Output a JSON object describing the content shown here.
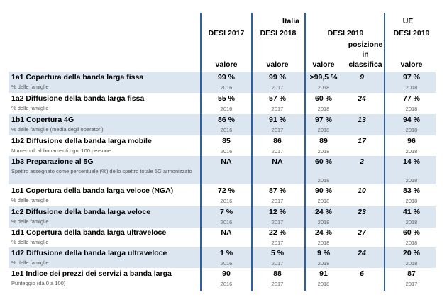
{
  "header": {
    "italia": "Italia",
    "ue": "UE",
    "desi2017": "DESI 2017",
    "desi2018": "DESI 2018",
    "desi2019": "DESI 2019",
    "desi2019_ue": "DESI 2019",
    "posizione": "posizione",
    "in": "in",
    "classifica": "classifica",
    "valore": "valore"
  },
  "rows": [
    {
      "label": "1a1 Copertura della banda larga fissa",
      "sub": "% delle famiglie",
      "v17": "99 %",
      "y17": "2016",
      "v18": "99 %",
      "y18": "2017",
      "v19": ">99,5 %",
      "y19": "2018",
      "rank": "9",
      "ue": "97 %",
      "yue": "2018"
    },
    {
      "label": "1a2 Diffusione della banda larga fissa",
      "sub": "% delle famiglie",
      "v17": "55 %",
      "y17": "2016",
      "v18": "57 %",
      "y18": "2017",
      "v19": "60 %",
      "y19": "2018",
      "rank": "24",
      "ue": "77 %",
      "yue": "2018"
    },
    {
      "label": "1b1 Copertura 4G",
      "sub": "% delle famiglie (media degli operatori)",
      "v17": "86 %",
      "y17": "2016",
      "v18": "91 %",
      "y18": "2017",
      "v19": "97 %",
      "y19": "2018",
      "rank": "13",
      "ue": "94 %",
      "yue": "2018"
    },
    {
      "label": "1b2 Diffusione della banda larga mobile",
      "sub": "Numero di abbonamenti ogni 100 persone",
      "v17": "85",
      "y17": "2016",
      "v18": "86",
      "y18": "2017",
      "v19": "89",
      "y19": "2018",
      "rank": "17",
      "ue": "96",
      "yue": "2018"
    },
    {
      "label": "1b3 Preparazione al 5G",
      "sub": "Spettro assegnato come percentuale (%) dello spettro totale 5G armonizzato",
      "v17": "NA",
      "y17": "",
      "v18": "NA",
      "y18": "",
      "v19": "60 %",
      "y19": "2018",
      "rank": "2",
      "ue": "14 %",
      "yue": "2018"
    },
    {
      "label": "1c1 Copertura della banda larga veloce (NGA)",
      "sub": "% delle famiglie",
      "v17": "72 %",
      "y17": "2016",
      "v18": "87 %",
      "y18": "2017",
      "v19": "90 %",
      "y19": "2018",
      "rank": "10",
      "ue": "83 %",
      "yue": "2018"
    },
    {
      "label": "1c2 Diffusione della banda larga veloce",
      "sub": "% delle famiglie",
      "v17": "7 %",
      "y17": "2016",
      "v18": "12 %",
      "y18": "2017",
      "v19": "24 %",
      "y19": "2018",
      "rank": "23",
      "ue": "41 %",
      "yue": "2018"
    },
    {
      "label": "1d1 Copertura della banda larga ultraveloce",
      "sub": "% delle famiglie",
      "v17": "NA",
      "y17": "",
      "v18": "22 %",
      "y18": "2017",
      "v19": "24 %",
      "y19": "2018",
      "rank": "27",
      "ue": "60 %",
      "yue": "2018"
    },
    {
      "label": "1d2 Diffusione della banda larga ultraveloce",
      "sub": "% delle famiglie",
      "v17": "1 %",
      "y17": "2016",
      "v18": "5 %",
      "y18": "2017",
      "v19": "9 %",
      "y19": "2018",
      "rank": "24",
      "ue": "20 %",
      "yue": "2018"
    },
    {
      "label": "1e1 Indice dei prezzi dei servizi a banda larga",
      "sub": "Punteggio (da 0 a 100)",
      "v17": "90",
      "y17": "2016",
      "v18": "88",
      "y18": "2017",
      "v19": "91",
      "y19": "2018",
      "rank": "6",
      "ue": "87",
      "yue": "2017"
    }
  ]
}
